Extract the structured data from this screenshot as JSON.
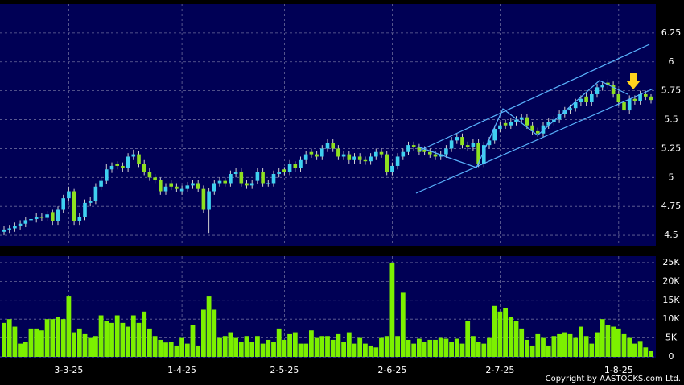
{
  "chart_data": {
    "type": "candlestick",
    "categories": [
      null,
      null,
      null,
      null,
      null,
      null,
      null,
      null,
      null,
      null,
      null,
      null,
      "3-3-25",
      null,
      null,
      null,
      null,
      null,
      null,
      null,
      null,
      null,
      null,
      null,
      null,
      null,
      null,
      null,
      null,
      null,
      null,
      null,
      null,
      "1-4-25",
      null,
      null,
      null,
      null,
      null,
      null,
      null,
      null,
      null,
      null,
      null,
      null,
      null,
      null,
      null,
      null,
      null,
      null,
      "2-5-25",
      null,
      null,
      null,
      null,
      null,
      null,
      null,
      null,
      null,
      null,
      null,
      null,
      null,
      null,
      null,
      null,
      null,
      null,
      null,
      "2-6-25",
      null,
      null,
      null,
      null,
      null,
      null,
      null,
      null,
      null,
      null,
      null,
      null,
      null,
      null,
      null,
      null,
      null,
      null,
      null,
      "2-7-25",
      null,
      null,
      null,
      null,
      null,
      null,
      null,
      null,
      null,
      null,
      null,
      null,
      null,
      null,
      null,
      null,
      null,
      null,
      null,
      null,
      null,
      "1-8-25",
      null,
      null,
      null,
      null,
      null,
      null
    ],
    "open": [
      4.53,
      4.55,
      4.56,
      4.58,
      4.6,
      4.63,
      4.64,
      4.66,
      4.65,
      4.7,
      4.62,
      4.72,
      4.82,
      4.88,
      4.62,
      4.66,
      4.78,
      4.8,
      4.92,
      4.97,
      5.07,
      5.12,
      5.1,
      5.08,
      5.18,
      5.2,
      5.12,
      5.05,
      5.0,
      4.98,
      4.88,
      4.95,
      4.92,
      4.88,
      4.9,
      4.93,
      4.95,
      4.9,
      4.72,
      4.88,
      4.95,
      4.97,
      4.95,
      5.03,
      5.05,
      4.95,
      4.93,
      4.97,
      5.05,
      4.95,
      4.95,
      5.03,
      5.07,
      5.05,
      5.12,
      5.08,
      5.15,
      5.22,
      5.2,
      5.18,
      5.25,
      5.3,
      5.25,
      5.18,
      5.2,
      5.15,
      5.18,
      5.15,
      5.14,
      5.18,
      5.22,
      5.2,
      5.05,
      5.1,
      5.18,
      5.22,
      5.28,
      5.26,
      5.24,
      5.22,
      5.2,
      5.18,
      5.2,
      5.25,
      5.32,
      5.35,
      5.28,
      5.26,
      5.3,
      5.12,
      5.28,
      5.32,
      5.42,
      5.47,
      5.45,
      5.48,
      5.5,
      5.52,
      5.45,
      5.4,
      5.38,
      5.45,
      5.48,
      5.5,
      5.55,
      5.58,
      5.6,
      5.65,
      5.7,
      5.65,
      5.72,
      5.78,
      5.82,
      5.8,
      5.72,
      5.65,
      5.58,
      5.68,
      5.66,
      5.72,
      5.7
    ],
    "high": [
      4.58,
      4.59,
      4.61,
      4.63,
      4.66,
      4.67,
      4.69,
      4.69,
      4.71,
      4.72,
      4.75,
      4.85,
      4.92,
      4.9,
      4.69,
      4.81,
      4.83,
      4.95,
      5.0,
      5.12,
      5.13,
      5.14,
      5.13,
      5.21,
      5.24,
      5.23,
      5.15,
      5.08,
      5.03,
      5.0,
      4.95,
      4.98,
      4.95,
      4.93,
      4.96,
      4.98,
      4.98,
      4.93,
      4.91,
      4.98,
      5.0,
      5.0,
      5.06,
      5.08,
      5.08,
      4.98,
      4.98,
      5.08,
      5.08,
      4.98,
      5.06,
      5.08,
      5.09,
      5.15,
      5.14,
      5.18,
      5.23,
      5.25,
      5.23,
      5.28,
      5.33,
      5.33,
      5.28,
      5.23,
      5.23,
      5.21,
      5.21,
      5.18,
      5.21,
      5.25,
      5.25,
      5.23,
      5.13,
      5.21,
      5.25,
      5.31,
      5.31,
      5.29,
      5.27,
      5.25,
      5.23,
      5.23,
      5.28,
      5.35,
      5.38,
      5.38,
      5.31,
      5.33,
      5.33,
      5.31,
      5.35,
      5.45,
      5.48,
      5.5,
      5.51,
      5.53,
      5.55,
      5.55,
      5.48,
      5.43,
      5.48,
      5.51,
      5.53,
      5.58,
      5.61,
      5.63,
      5.68,
      5.71,
      5.73,
      5.75,
      5.81,
      5.83,
      5.85,
      5.83,
      5.75,
      5.68,
      5.71,
      5.71,
      5.75,
      5.75,
      5.72
    ],
    "low": [
      4.5,
      4.52,
      4.53,
      4.55,
      4.57,
      4.6,
      4.61,
      4.62,
      4.62,
      4.59,
      4.59,
      4.69,
      4.79,
      4.59,
      4.59,
      4.63,
      4.75,
      4.77,
      4.89,
      4.94,
      5.04,
      5.07,
      5.05,
      5.05,
      5.15,
      5.09,
      5.02,
      4.97,
      4.95,
      4.85,
      4.85,
      4.89,
      4.87,
      4.85,
      4.87,
      4.9,
      4.87,
      4.69,
      4.52,
      4.85,
      4.92,
      4.92,
      4.92,
      5.0,
      4.92,
      4.9,
      4.9,
      4.94,
      4.92,
      4.92,
      4.92,
      5.0,
      5.02,
      5.02,
      5.05,
      5.05,
      5.12,
      5.17,
      5.15,
      5.15,
      5.22,
      5.22,
      5.15,
      5.15,
      5.12,
      5.12,
      5.12,
      5.11,
      5.11,
      5.15,
      5.17,
      5.02,
      5.02,
      5.07,
      5.15,
      5.19,
      5.23,
      5.19,
      5.19,
      5.17,
      5.15,
      5.15,
      5.17,
      5.22,
      5.29,
      5.25,
      5.23,
      5.23,
      5.09,
      5.09,
      5.25,
      5.29,
      5.39,
      5.42,
      5.42,
      5.45,
      5.47,
      5.42,
      5.37,
      5.35,
      5.35,
      5.42,
      5.45,
      5.47,
      5.52,
      5.55,
      5.57,
      5.62,
      5.62,
      5.62,
      5.69,
      5.75,
      5.77,
      5.69,
      5.62,
      5.55,
      5.55,
      5.63,
      5.63,
      5.67,
      5.64
    ],
    "close": [
      4.55,
      4.56,
      4.58,
      4.6,
      4.63,
      4.64,
      4.66,
      4.65,
      4.68,
      4.62,
      4.72,
      4.82,
      4.88,
      4.62,
      4.66,
      4.78,
      4.8,
      4.92,
      4.97,
      5.07,
      5.1,
      5.1,
      5.08,
      5.18,
      5.2,
      5.12,
      5.05,
      5.0,
      4.98,
      4.88,
      4.92,
      4.92,
      4.9,
      4.9,
      4.93,
      4.95,
      4.9,
      4.72,
      4.88,
      4.95,
      4.97,
      4.95,
      5.03,
      5.05,
      4.95,
      4.93,
      4.95,
      5.05,
      4.95,
      4.95,
      5.03,
      5.05,
      5.05,
      5.12,
      5.08,
      5.15,
      5.2,
      5.2,
      5.18,
      5.25,
      5.3,
      5.25,
      5.18,
      5.2,
      5.15,
      5.18,
      5.15,
      5.14,
      5.18,
      5.22,
      5.2,
      5.05,
      5.1,
      5.18,
      5.22,
      5.28,
      5.26,
      5.22,
      5.22,
      5.2,
      5.18,
      5.2,
      5.25,
      5.32,
      5.35,
      5.28,
      5.26,
      5.3,
      5.12,
      5.28,
      5.32,
      5.42,
      5.45,
      5.45,
      5.48,
      5.5,
      5.52,
      5.45,
      5.4,
      5.38,
      5.45,
      5.48,
      5.5,
      5.55,
      5.58,
      5.6,
      5.65,
      5.68,
      5.65,
      5.72,
      5.78,
      5.8,
      5.8,
      5.72,
      5.65,
      5.58,
      5.68,
      5.66,
      5.72,
      5.7,
      5.67
    ],
    "volume": [
      9000,
      10000,
      8000,
      3500,
      4000,
      7500,
      7500,
      7000,
      10000,
      10000,
      10500,
      10000,
      16000,
      6500,
      7500,
      6000,
      5000,
      5500,
      11000,
      9500,
      9000,
      11000,
      9000,
      8000,
      11000,
      9000,
      12000,
      7500,
      5500,
      4500,
      3800,
      4000,
      3000,
      5000,
      3500,
      8500,
      3000,
      12500,
      16000,
      12500,
      5000,
      5500,
      6500,
      5000,
      4000,
      5500,
      4000,
      5500,
      3500,
      4500,
      4000,
      7500,
      4500,
      6000,
      6500,
      3500,
      3500,
      7000,
      5000,
      5500,
      5500,
      4500,
      6000,
      4000,
      6500,
      3500,
      5000,
      3500,
      3000,
      2500,
      5000,
      5500,
      25000,
      5500,
      17000,
      4500,
      3500,
      4800,
      4000,
      4500,
      4500,
      5000,
      4800,
      4000,
      4800,
      3500,
      9500,
      5500,
      4000,
      3500,
      5000,
      13500,
      12000,
      13000,
      10500,
      9500,
      7500,
      4500,
      3000,
      6000,
      5000,
      3000,
      5500,
      6000,
      6500,
      6000,
      5000,
      8000,
      5500,
      3500,
      6500,
      10000,
      8500,
      8000,
      7500,
      6000,
      5000,
      3500,
      4200,
      2500,
      1500
    ],
    "up_color": "#3fd0f0",
    "down_color": "#8ee020",
    "volume_color": "#7cf000",
    "ylim": [
      4.41,
      6.5
    ],
    "yticks": [
      4.5,
      4.75,
      5,
      5.25,
      5.5,
      5.75,
      6,
      6.25
    ],
    "volume_ylim": [
      0,
      26700
    ],
    "volume_yticks": [
      0,
      {
        "value": 5000,
        "label": "5K"
      },
      {
        "value": 10000,
        "label": "10K"
      },
      {
        "value": 15000,
        "label": "15K"
      },
      {
        "value": 20000,
        "label": "20K"
      },
      {
        "value": 25000,
        "label": "25K"
      }
    ],
    "grid": true,
    "copyright": "Copyright by AASTOCKS.com Ltd."
  }
}
